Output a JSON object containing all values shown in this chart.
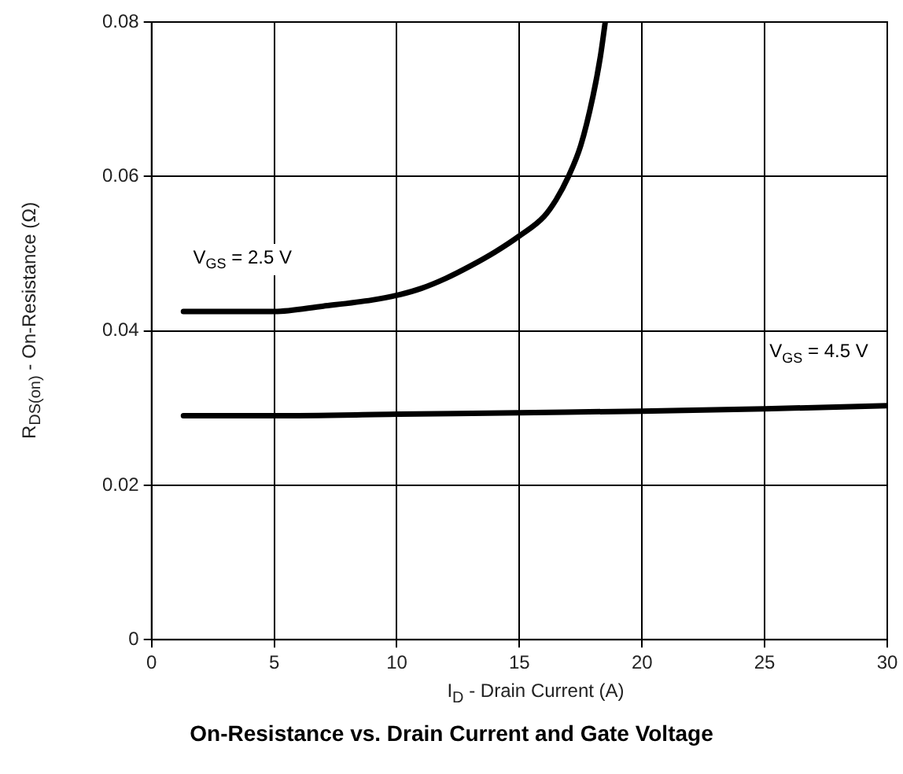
{
  "chart_data": {
    "type": "line",
    "title": "On-Resistance vs. Drain Current and Gate Voltage",
    "xlabel": "I$_{D}$ - Drain Current (A)",
    "ylabel": "R$_{DS(on)}$ - On-Resistance (Ω)",
    "xlim": [
      0,
      30
    ],
    "xticks": [
      0,
      5,
      10,
      15,
      20,
      25,
      30
    ],
    "ylim": [
      0,
      0.08
    ],
    "yticks": [
      0,
      0.02,
      0.04,
      0.06,
      0.08
    ],
    "grid": true,
    "legend": false,
    "marker": "none",
    "line_style": "solid",
    "series": [
      {
        "name": "V$_{GS}$ = 2.5 V",
        "color": "#000000",
        "x": [
          1.3,
          3,
          5,
          7,
          9,
          10,
          11,
          12,
          13,
          14,
          15,
          16,
          16.5,
          17,
          17.5,
          18,
          18.3,
          18.5
        ],
        "values": [
          0.0425,
          0.0425,
          0.0425,
          0.0432,
          0.044,
          0.0446,
          0.0455,
          0.0468,
          0.0484,
          0.0502,
          0.0523,
          0.0548,
          0.057,
          0.06,
          0.064,
          0.0704,
          0.0755,
          0.08
        ]
      },
      {
        "name": "V$_{GS}$ = 4.5 V",
        "color": "#000000",
        "x": [
          1.3,
          5,
          10,
          15,
          20,
          25,
          30
        ],
        "values": [
          0.029,
          0.029,
          0.0292,
          0.0294,
          0.0296,
          0.0299,
          0.0303
        ]
      }
    ]
  }
}
